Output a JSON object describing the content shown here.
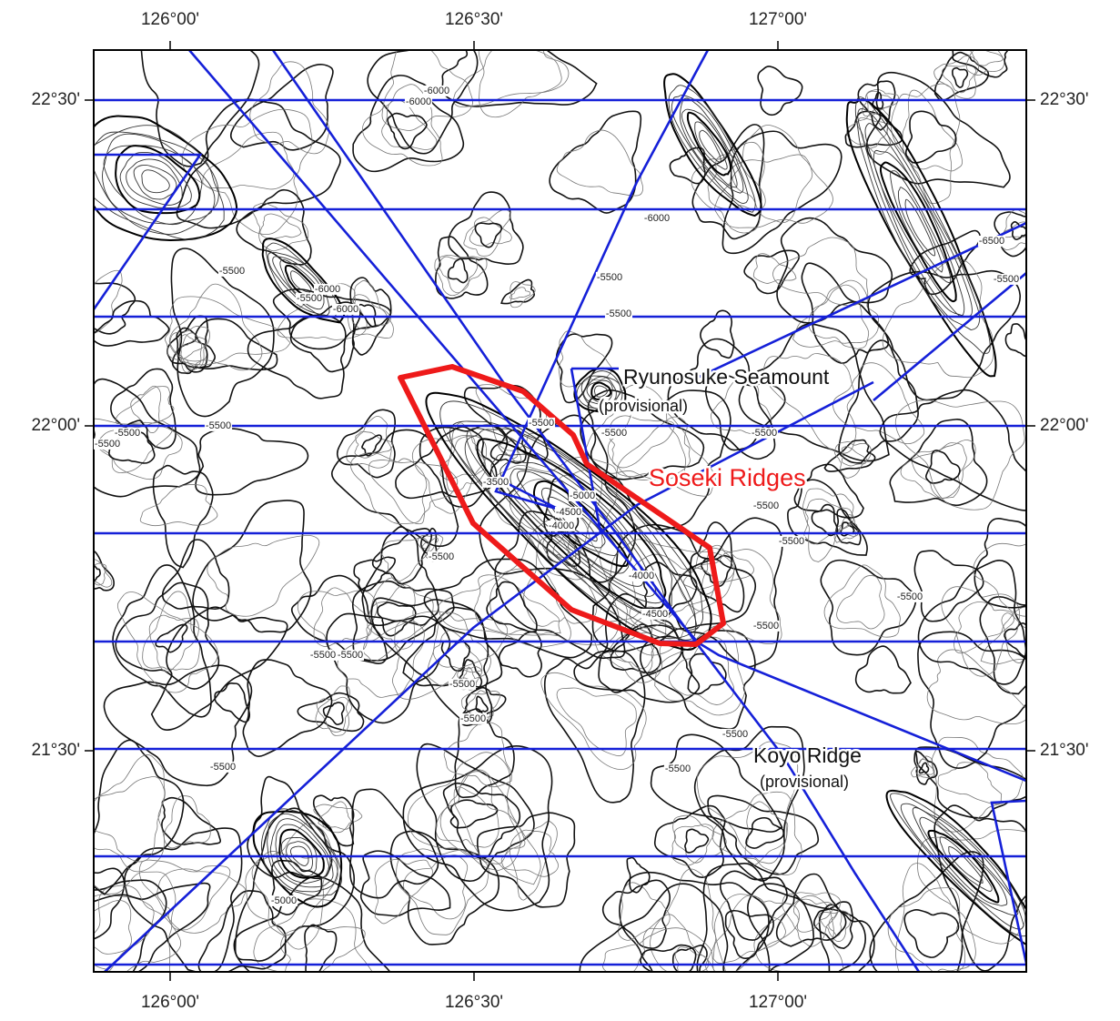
{
  "map": {
    "longitude_labels": [
      "126°00'",
      "126°30'",
      "127°00'"
    ],
    "latitude_labels": [
      "22°30'",
      "22°00'",
      "21°30'"
    ],
    "places": [
      {
        "name": "Ryunosuke Seamount",
        "note": "(provisional)"
      },
      {
        "name": "Soseki Ridges"
      },
      {
        "name": "Koyo Ridge",
        "note": "(provisional)"
      }
    ],
    "contour_labels": [
      "-6000",
      "-6000",
      "-6000",
      "-6500",
      "-5500",
      "-6000",
      "-5500",
      "-6000",
      "-5500",
      "-5500",
      "-5500",
      "-5500",
      "-5500",
      "-5000",
      "-4500",
      "-4000",
      "-4000",
      "-4500",
      "-5500",
      "-5500",
      "-5500",
      "-5500",
      "-5500",
      "-5500",
      "-5500",
      "-5500",
      "-5500",
      "-5500",
      "-5500",
      "-5000",
      "-5500",
      "-5500",
      "-5500",
      "-5500",
      "-5500",
      "-3500"
    ]
  }
}
